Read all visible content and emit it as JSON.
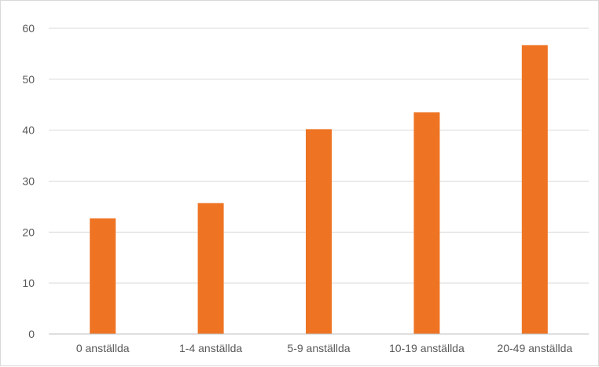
{
  "chart_data": {
    "type": "bar",
    "categories": [
      "0 anställda",
      "1-4 anställda",
      "5-9 anställda",
      "10-19 anställda",
      "20-49 anställda"
    ],
    "values": [
      22.7,
      25.7,
      40.2,
      43.5,
      56.7
    ],
    "ylim": [
      0,
      60
    ],
    "yticks": [
      0,
      10,
      20,
      30,
      40,
      50,
      60
    ],
    "grid": true,
    "bar_color": "#ee7424",
    "grid_color": "#d9d9d9",
    "axis_color": "#bfbfbf",
    "label_color": "#595959"
  }
}
